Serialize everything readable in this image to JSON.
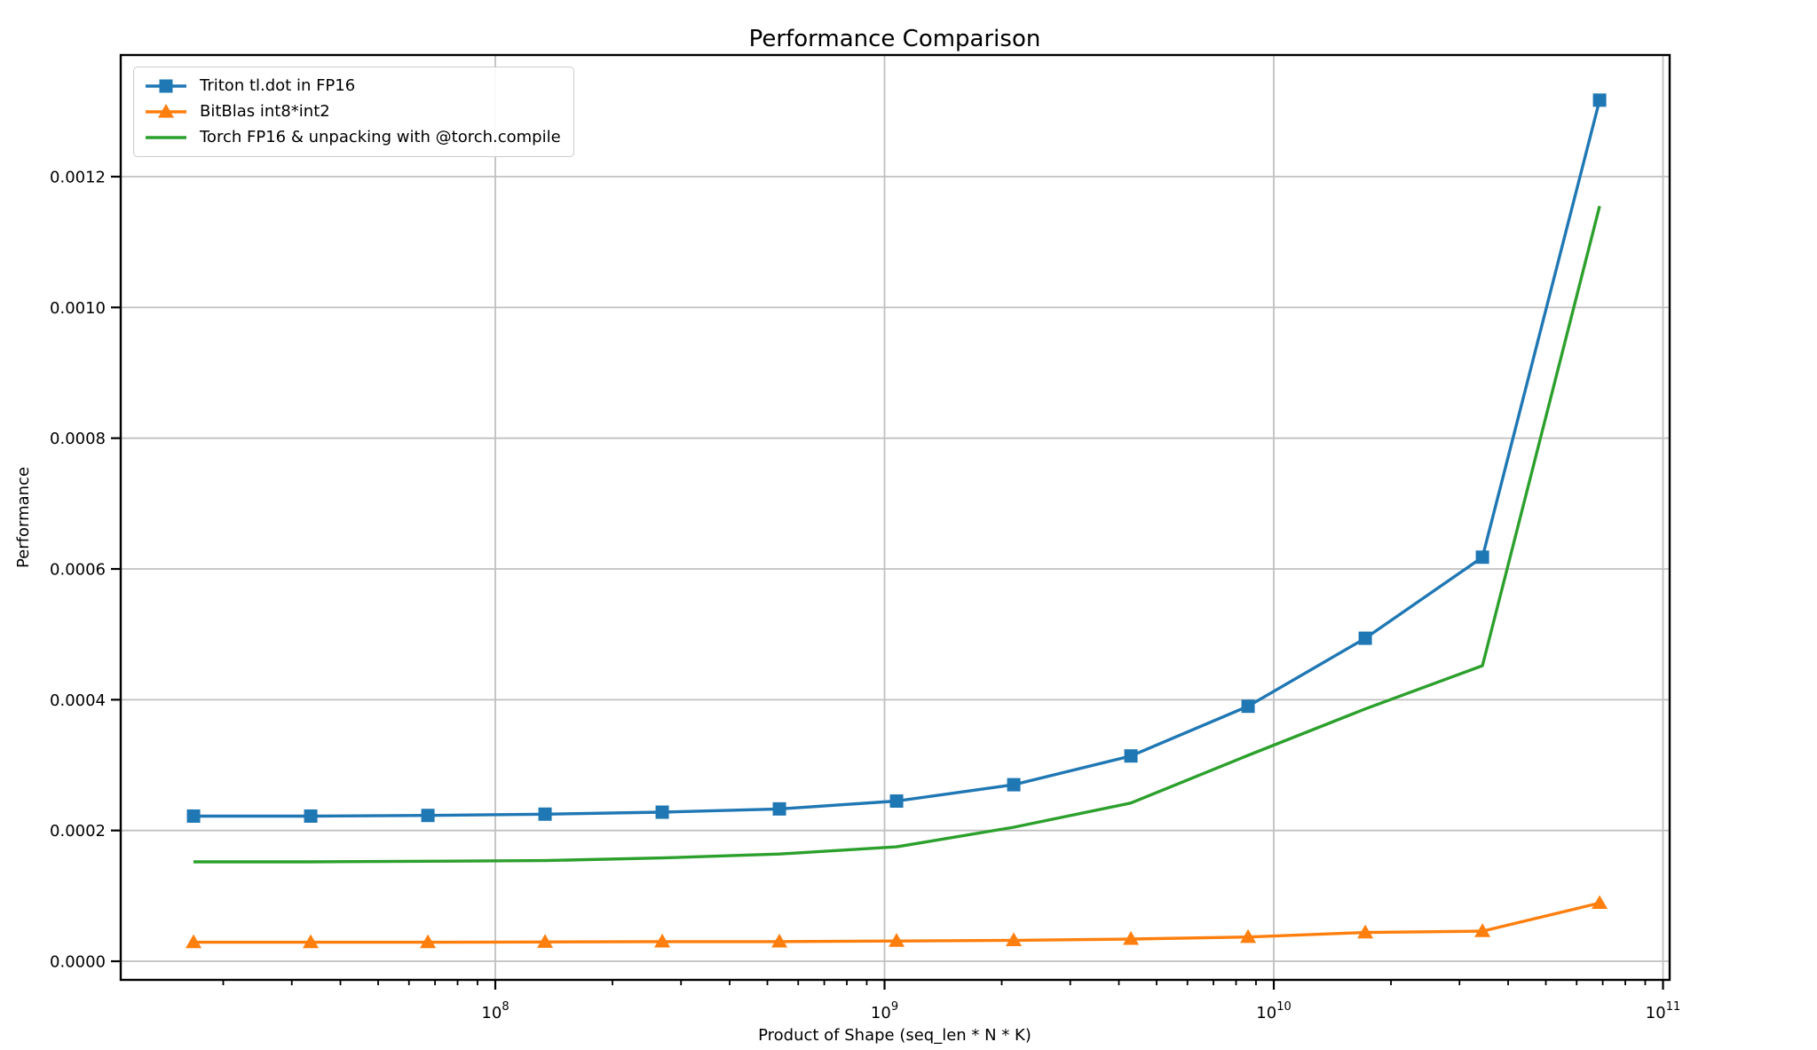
{
  "figure": {
    "background": "#ffffff",
    "frame_color": "#000000",
    "grid_color": "#c0c0c0",
    "legend_border_color": "#cccccc"
  },
  "chart_data": {
    "type": "line",
    "title": "Performance Comparison",
    "xlabel": "Product of Shape (seq_len * N * K)",
    "ylabel": "Performance",
    "x_scale": "log",
    "grid": true,
    "legend_position": "upper left",
    "xlim": [
      10905000,
      104000000000
    ],
    "ylim": [
      -2.85e-05,
      0.001386
    ],
    "x_major_ticks": [
      {
        "value": 100000000,
        "base": "10",
        "exp": "8"
      },
      {
        "value": 1000000000,
        "base": "10",
        "exp": "9"
      },
      {
        "value": 10000000000,
        "base": "10",
        "exp": "10"
      },
      {
        "value": 100000000000,
        "base": "10",
        "exp": "11"
      }
    ],
    "y_ticks": [
      {
        "value": 0.0,
        "label": "0.0000"
      },
      {
        "value": 0.0002,
        "label": "0.0002"
      },
      {
        "value": 0.0004,
        "label": "0.0004"
      },
      {
        "value": 0.0006,
        "label": "0.0006"
      },
      {
        "value": 0.0008,
        "label": "0.0008"
      },
      {
        "value": 0.001,
        "label": "0.0010"
      },
      {
        "value": 0.0012,
        "label": "0.0012"
      }
    ],
    "x": [
      16777216,
      33554432,
      67108864,
      134217728,
      268435456,
      536870912,
      1073741824,
      2147483648,
      4294967296,
      8589934592,
      17179869184,
      34359738368,
      68719476736
    ],
    "series": [
      {
        "name": "Triton tl.dot in FP16",
        "color": "#1f77b4",
        "marker": "square",
        "values": [
          0.000222,
          0.000222,
          0.000223,
          0.000225,
          0.000228,
          0.000233,
          0.000245,
          0.00027,
          0.000314,
          0.00039,
          0.000494,
          0.000618,
          0.001317
        ]
      },
      {
        "name": "BitBlas int8*int2",
        "color": "#ff7f0e",
        "marker": "triangle",
        "values": [
          2.9e-05,
          2.9e-05,
          2.9e-05,
          2.95e-05,
          3e-05,
          3e-05,
          3.1e-05,
          3.2e-05,
          3.4e-05,
          3.7e-05,
          4.4e-05,
          4.6e-05,
          8.9e-05
        ]
      },
      {
        "name": "Torch FP16 & unpacking with @torch.compile",
        "color": "#2ca02c",
        "marker": "none",
        "values": [
          0.000152,
          0.000152,
          0.000153,
          0.000154,
          0.000158,
          0.000164,
          0.000175,
          0.000205,
          0.000242,
          0.000315,
          0.000386,
          0.000452,
          0.001155
        ]
      }
    ]
  }
}
